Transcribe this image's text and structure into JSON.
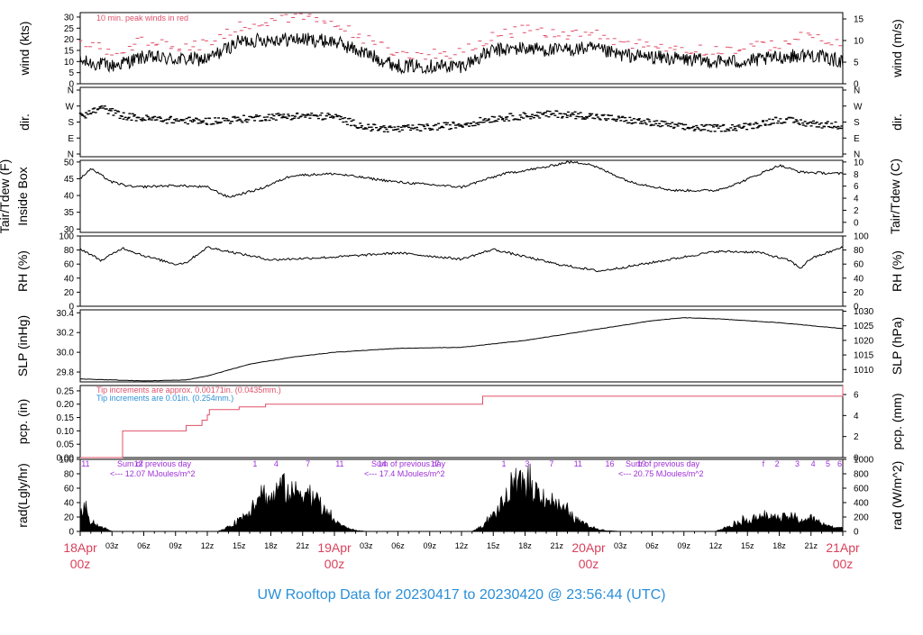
{
  "footer": {
    "title": "UW Rooftop Data for 20230417  to  20230420 @ 23:56:44  (UTC)"
  },
  "colors": {
    "ink": "#000000",
    "peak_red": "#e0506a",
    "date_red": "#d9415b",
    "rain_blue": "#2f8fd6",
    "solar_purple": "#9c2fd6",
    "title_blue": "#2a8fd8"
  },
  "chart_data": [
    {
      "type": "line",
      "panel": "wind",
      "ylabel": "wind (kts)",
      "ylabel_right": "wind (m/s)",
      "yticks": [
        0,
        5,
        10,
        15,
        20,
        25,
        30
      ],
      "yticks_right": [
        0,
        5,
        10,
        15
      ],
      "ylim": [
        0,
        32
      ],
      "annotation": "10 min. peak winds in red",
      "x_unit": "hours since 18Apr 00z",
      "series": [
        {
          "role": "wind speed (kts)",
          "color": "#000000",
          "x": [
            0,
            3,
            6,
            9,
            12,
            15,
            18,
            21,
            24,
            30,
            36,
            39,
            42,
            45,
            48,
            51,
            54,
            57,
            60,
            63,
            66,
            69,
            72
          ],
          "y": [
            10,
            8,
            12,
            11,
            11,
            19,
            20,
            20,
            19,
            8,
            8,
            15,
            16,
            15,
            16,
            13,
            12,
            11,
            10,
            10,
            12,
            13,
            10
          ]
        },
        {
          "role": "10 min. peak winds",
          "color": "#e0506a",
          "x": [
            0,
            3,
            6,
            9,
            12,
            15,
            18,
            21,
            24,
            30,
            36,
            39,
            42,
            45,
            48,
            51,
            54,
            57,
            60,
            63,
            66,
            69,
            72
          ],
          "y": [
            19,
            14,
            19,
            17,
            18,
            26,
            28,
            30,
            27,
            13,
            14,
            22,
            24,
            22,
            23,
            19,
            17,
            16,
            15,
            16,
            18,
            22,
            17
          ]
        }
      ]
    },
    {
      "type": "scatter",
      "panel": "dir",
      "ylabel": "dir.",
      "ylabel_right": "dir.",
      "ytick_labels": [
        "N",
        "W",
        "S",
        "E",
        "N"
      ],
      "ylim": [
        0,
        360
      ],
      "x_unit": "hours since 18Apr 00z",
      "series": [
        {
          "role": "wind direction (deg)",
          "x": [
            0,
            2,
            4,
            6,
            9,
            12,
            15,
            18,
            21,
            24,
            27,
            30,
            33,
            36,
            39,
            42,
            45,
            48,
            51,
            54,
            57,
            60,
            63,
            66,
            69,
            72
          ],
          "y": [
            210,
            260,
            215,
            200,
            190,
            185,
            195,
            210,
            215,
            210,
            150,
            140,
            150,
            165,
            200,
            215,
            225,
            215,
            195,
            175,
            150,
            145,
            155,
            195,
            170,
            160
          ]
        }
      ]
    },
    {
      "type": "line",
      "panel": "temperature",
      "ylabel": "Tair/Tdew (F)",
      "ylabel2": "Inside Box",
      "ylabel_right": "Tair/Tdew (C)",
      "yticks": [
        30,
        35,
        40,
        45,
        50
      ],
      "yticks_right": [
        0,
        2,
        4,
        6,
        8,
        10
      ],
      "ylim": [
        29,
        50.5
      ],
      "x_unit": "hours since 18Apr 00z",
      "series": [
        {
          "role": "Tair (F)",
          "x": [
            0,
            1,
            3,
            5,
            9,
            12,
            14,
            17,
            20,
            24,
            30,
            36,
            40,
            44,
            46,
            48,
            52,
            56,
            60,
            62,
            66,
            68,
            72
          ],
          "y": [
            45,
            48,
            44,
            42.5,
            43,
            42.5,
            39.5,
            42,
            46,
            46.5,
            44,
            42.5,
            46.5,
            48.5,
            50,
            49.5,
            44,
            41.5,
            41.5,
            43.5,
            49,
            47,
            46.5
          ]
        }
      ]
    },
    {
      "type": "line",
      "panel": "humidity",
      "ylabel": "RH (%)",
      "ylabel_right": "RH (%)",
      "yticks": [
        0,
        20,
        40,
        60,
        80,
        100
      ],
      "yticks_right": [
        0,
        20,
        40,
        60,
        80,
        100
      ],
      "ylim": [
        0,
        100
      ],
      "x_unit": "hours since 18Apr 00z",
      "series": [
        {
          "role": "RH (%)",
          "x": [
            0,
            2,
            4,
            6,
            9,
            10,
            12,
            18,
            24,
            30,
            36,
            39,
            45,
            49,
            52,
            60,
            64,
            67,
            68,
            69,
            72
          ],
          "y": [
            82,
            65,
            83,
            72,
            60,
            62,
            84,
            66,
            70,
            76,
            67,
            81,
            60,
            50,
            57,
            78,
            77,
            65,
            54,
            68,
            84
          ]
        }
      ]
    },
    {
      "type": "line",
      "panel": "pressure",
      "ylabel": "SLP (inHg)",
      "ylabel_right": "SLP (hPa)",
      "yticks": [
        29.8,
        30.0,
        30.2,
        30.4
      ],
      "yticks_right": [
        1010,
        1015,
        1020,
        1025,
        1030
      ],
      "ylim": [
        29.7,
        30.43
      ],
      "x_unit": "hours since 18Apr 00z",
      "series": [
        {
          "role": "SLP (inHg)",
          "x": [
            0,
            3,
            6,
            10,
            12,
            16,
            20,
            24,
            30,
            36,
            42,
            48,
            54,
            57,
            60,
            66,
            72
          ],
          "y": [
            29.73,
            29.72,
            29.71,
            29.72,
            29.76,
            29.88,
            29.95,
            30.0,
            30.04,
            30.05,
            30.12,
            30.22,
            30.32,
            30.35,
            30.34,
            30.3,
            30.24
          ]
        }
      ]
    },
    {
      "type": "line",
      "panel": "precipitation",
      "ylabel": "pcp. (in)",
      "ylabel_right": "pcp. (mm)",
      "yticks": [
        0,
        0.05,
        0.1,
        0.15,
        0.2,
        0.25
      ],
      "ytick_labels": [
        "0.00",
        "0.05",
        "0.10",
        "0.15",
        "0.20",
        "0.25"
      ],
      "yticks_right": [
        0,
        2,
        4,
        6
      ],
      "ylim": [
        0,
        0.27
      ],
      "annotations": [
        "Tip increments are approx. 0.00171in. (0.0435mm.)",
        "Tip increments are 0.01in. (0.254mm.)"
      ],
      "x_unit": "hours since 18Apr 00z",
      "series": [
        {
          "role": "cumulative precipitation (in)",
          "color": "#e0506a",
          "x": [
            0,
            3.8,
            4.0,
            9.0,
            10.0,
            11.5,
            12.0,
            12.2,
            15.0,
            17.5,
            20.0,
            37.0,
            38.0,
            72.0,
            72.0
          ],
          "y": [
            0,
            0,
            0.1,
            0.1,
            0.12,
            0.14,
            0.16,
            0.18,
            0.19,
            0.2,
            0.2,
            0.2,
            0.23,
            0.25,
            0.27
          ]
        }
      ]
    },
    {
      "type": "area",
      "panel": "radiation",
      "ylabel": "rad(Lgly/hr)",
      "ylabel_right": "rad (W/m^2)",
      "yticks": [
        0,
        20,
        40,
        60,
        80,
        100
      ],
      "yticks_right": [
        0,
        200,
        400,
        600,
        800,
        1000
      ],
      "ylim": [
        0,
        100
      ],
      "daily_sums": [
        {
          "label": "Sum of previous day",
          "value": "<--- 12.07 MJoules/m^2"
        },
        {
          "label": "Sum of previous day",
          "value": "<--- 17.4 MJoules/m^2"
        },
        {
          "label": "Sum of previous day",
          "value": "<--- 20.75 MJoules/m^2"
        }
      ],
      "hour_marks": [
        [
          "11",
          "12",
          "1",
          "4",
          "7",
          "11",
          "14",
          "17"
        ],
        [
          "1",
          "3",
          "7",
          "11",
          "16",
          "19"
        ],
        [
          "f",
          "2",
          "3",
          "4",
          "5",
          "6"
        ]
      ],
      "x_unit": "hours since 18Apr 00z",
      "series": [
        {
          "role": "solar radiation (Lgly/hr)",
          "x": [
            0,
            0.5,
            1,
            2,
            3,
            13,
            14,
            15,
            16,
            17,
            18,
            19,
            20,
            21,
            22,
            23,
            24,
            25,
            26,
            27,
            37,
            38,
            39,
            40,
            41,
            42,
            43,
            44,
            45,
            46,
            47,
            48,
            49,
            50,
            51,
            60,
            61,
            62,
            63,
            64,
            65,
            66,
            67,
            68,
            69,
            70,
            71,
            72
          ],
          "y": [
            30,
            45,
            18,
            8,
            0,
            0,
            8,
            22,
            40,
            75,
            60,
            85,
            70,
            80,
            65,
            40,
            20,
            8,
            2,
            0,
            0,
            10,
            30,
            55,
            80,
            90,
            75,
            65,
            50,
            35,
            20,
            10,
            4,
            1,
            0,
            0,
            8,
            16,
            22,
            25,
            28,
            24,
            28,
            20,
            25,
            15,
            8,
            6
          ]
        }
      ]
    },
    {
      "type": "axis",
      "panel": "time-axis",
      "xticks": [
        "03z",
        "06z",
        "09z",
        "12z",
        "15z",
        "18z",
        "21z",
        "03z",
        "06z",
        "09z",
        "12z",
        "15z",
        "18z",
        "21z",
        "03z",
        "06z",
        "09z",
        "12z",
        "15z",
        "18z",
        "21z"
      ],
      "day_labels": [
        {
          "date": "18Apr",
          "hour": "00z"
        },
        {
          "date": "19Apr",
          "hour": "00z"
        },
        {
          "date": "20Apr",
          "hour": "00z"
        },
        {
          "date": "21Apr",
          "hour": "00z"
        }
      ]
    }
  ]
}
